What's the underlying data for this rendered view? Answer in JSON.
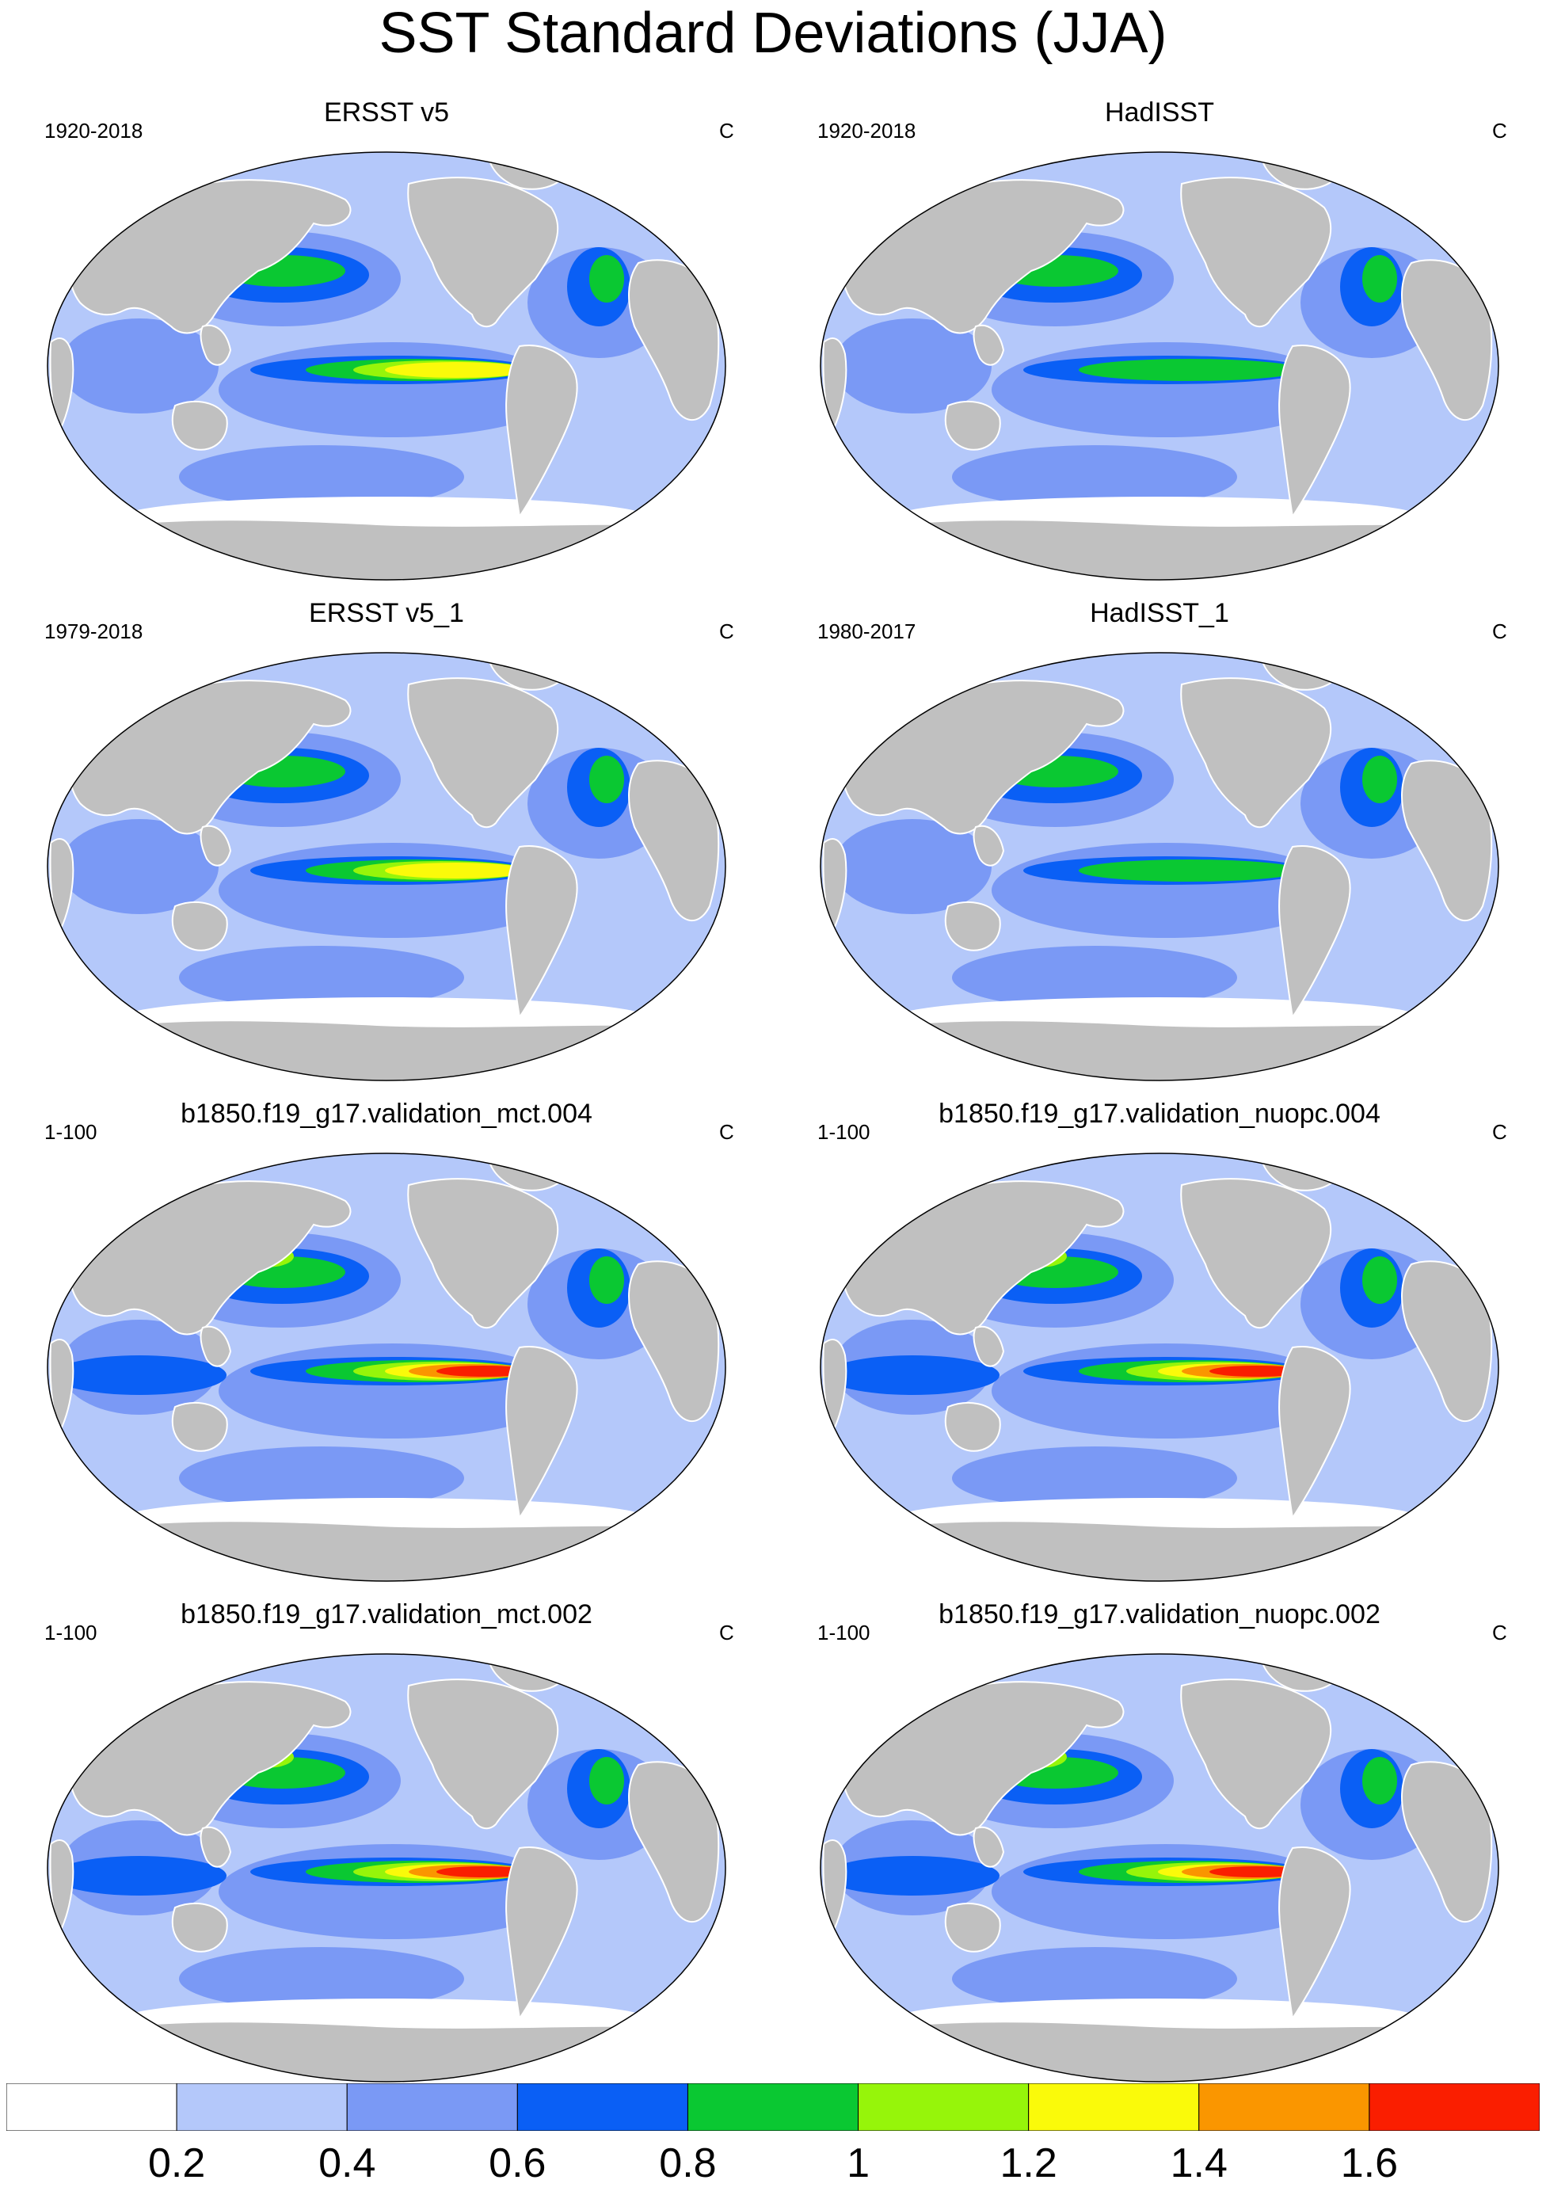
{
  "title": "SST Standard Deviations (JJA)",
  "panels": [
    {
      "title": "ERSST v5",
      "period": "1920-2018",
      "unit": "C"
    },
    {
      "title": "HadISST",
      "period": "1920-2018",
      "unit": "C"
    },
    {
      "title": "ERSST v5_1",
      "period": "1979-2018",
      "unit": "C"
    },
    {
      "title": "HadISST_1",
      "period": "1980-2017",
      "unit": "C"
    },
    {
      "title": "b1850.f19_g17.validation_mct.004",
      "period": "1-100",
      "unit": "C"
    },
    {
      "title": "b1850.f19_g17.validation_nuopc.004",
      "period": "1-100",
      "unit": "C"
    },
    {
      "title": "b1850.f19_g17.validation_mct.002",
      "period": "1-100",
      "unit": "C"
    },
    {
      "title": "b1850.f19_g17.validation_nuopc.002",
      "period": "1-100",
      "unit": "C"
    }
  ],
  "colorbar": {
    "colors": [
      "#ffffff",
      "#b4c8fa",
      "#7a99f5",
      "#0a5ff5",
      "#0ac832",
      "#96f50a",
      "#fafa0a",
      "#fa9600",
      "#fa1e00"
    ],
    "tick_labels": [
      "0.2",
      "0.4",
      "0.6",
      "0.8",
      "1",
      "1.2",
      "1.4",
      "1.6"
    ]
  },
  "land_color": "#c0c0c0"
}
